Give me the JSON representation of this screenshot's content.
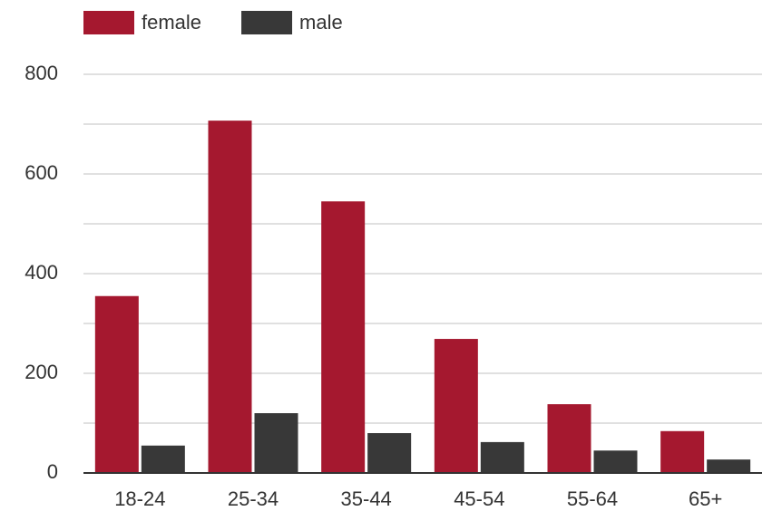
{
  "chart_data": {
    "type": "bar",
    "categories": [
      "18-24",
      "25-34",
      "35-44",
      "45-54",
      "55-64",
      "65+"
    ],
    "series": [
      {
        "name": "female",
        "color": "#a5182f",
        "values": [
          355,
          707,
          545,
          269,
          138,
          84
        ]
      },
      {
        "name": "male",
        "color": "#383838",
        "values": [
          55,
          120,
          80,
          62,
          45,
          27
        ]
      }
    ],
    "ylim": [
      0,
      800
    ],
    "yticks": [
      0,
      200,
      400,
      600,
      800
    ],
    "minor_yticks": [
      100,
      300,
      500,
      700
    ],
    "grid": true,
    "legend": "top-left"
  }
}
